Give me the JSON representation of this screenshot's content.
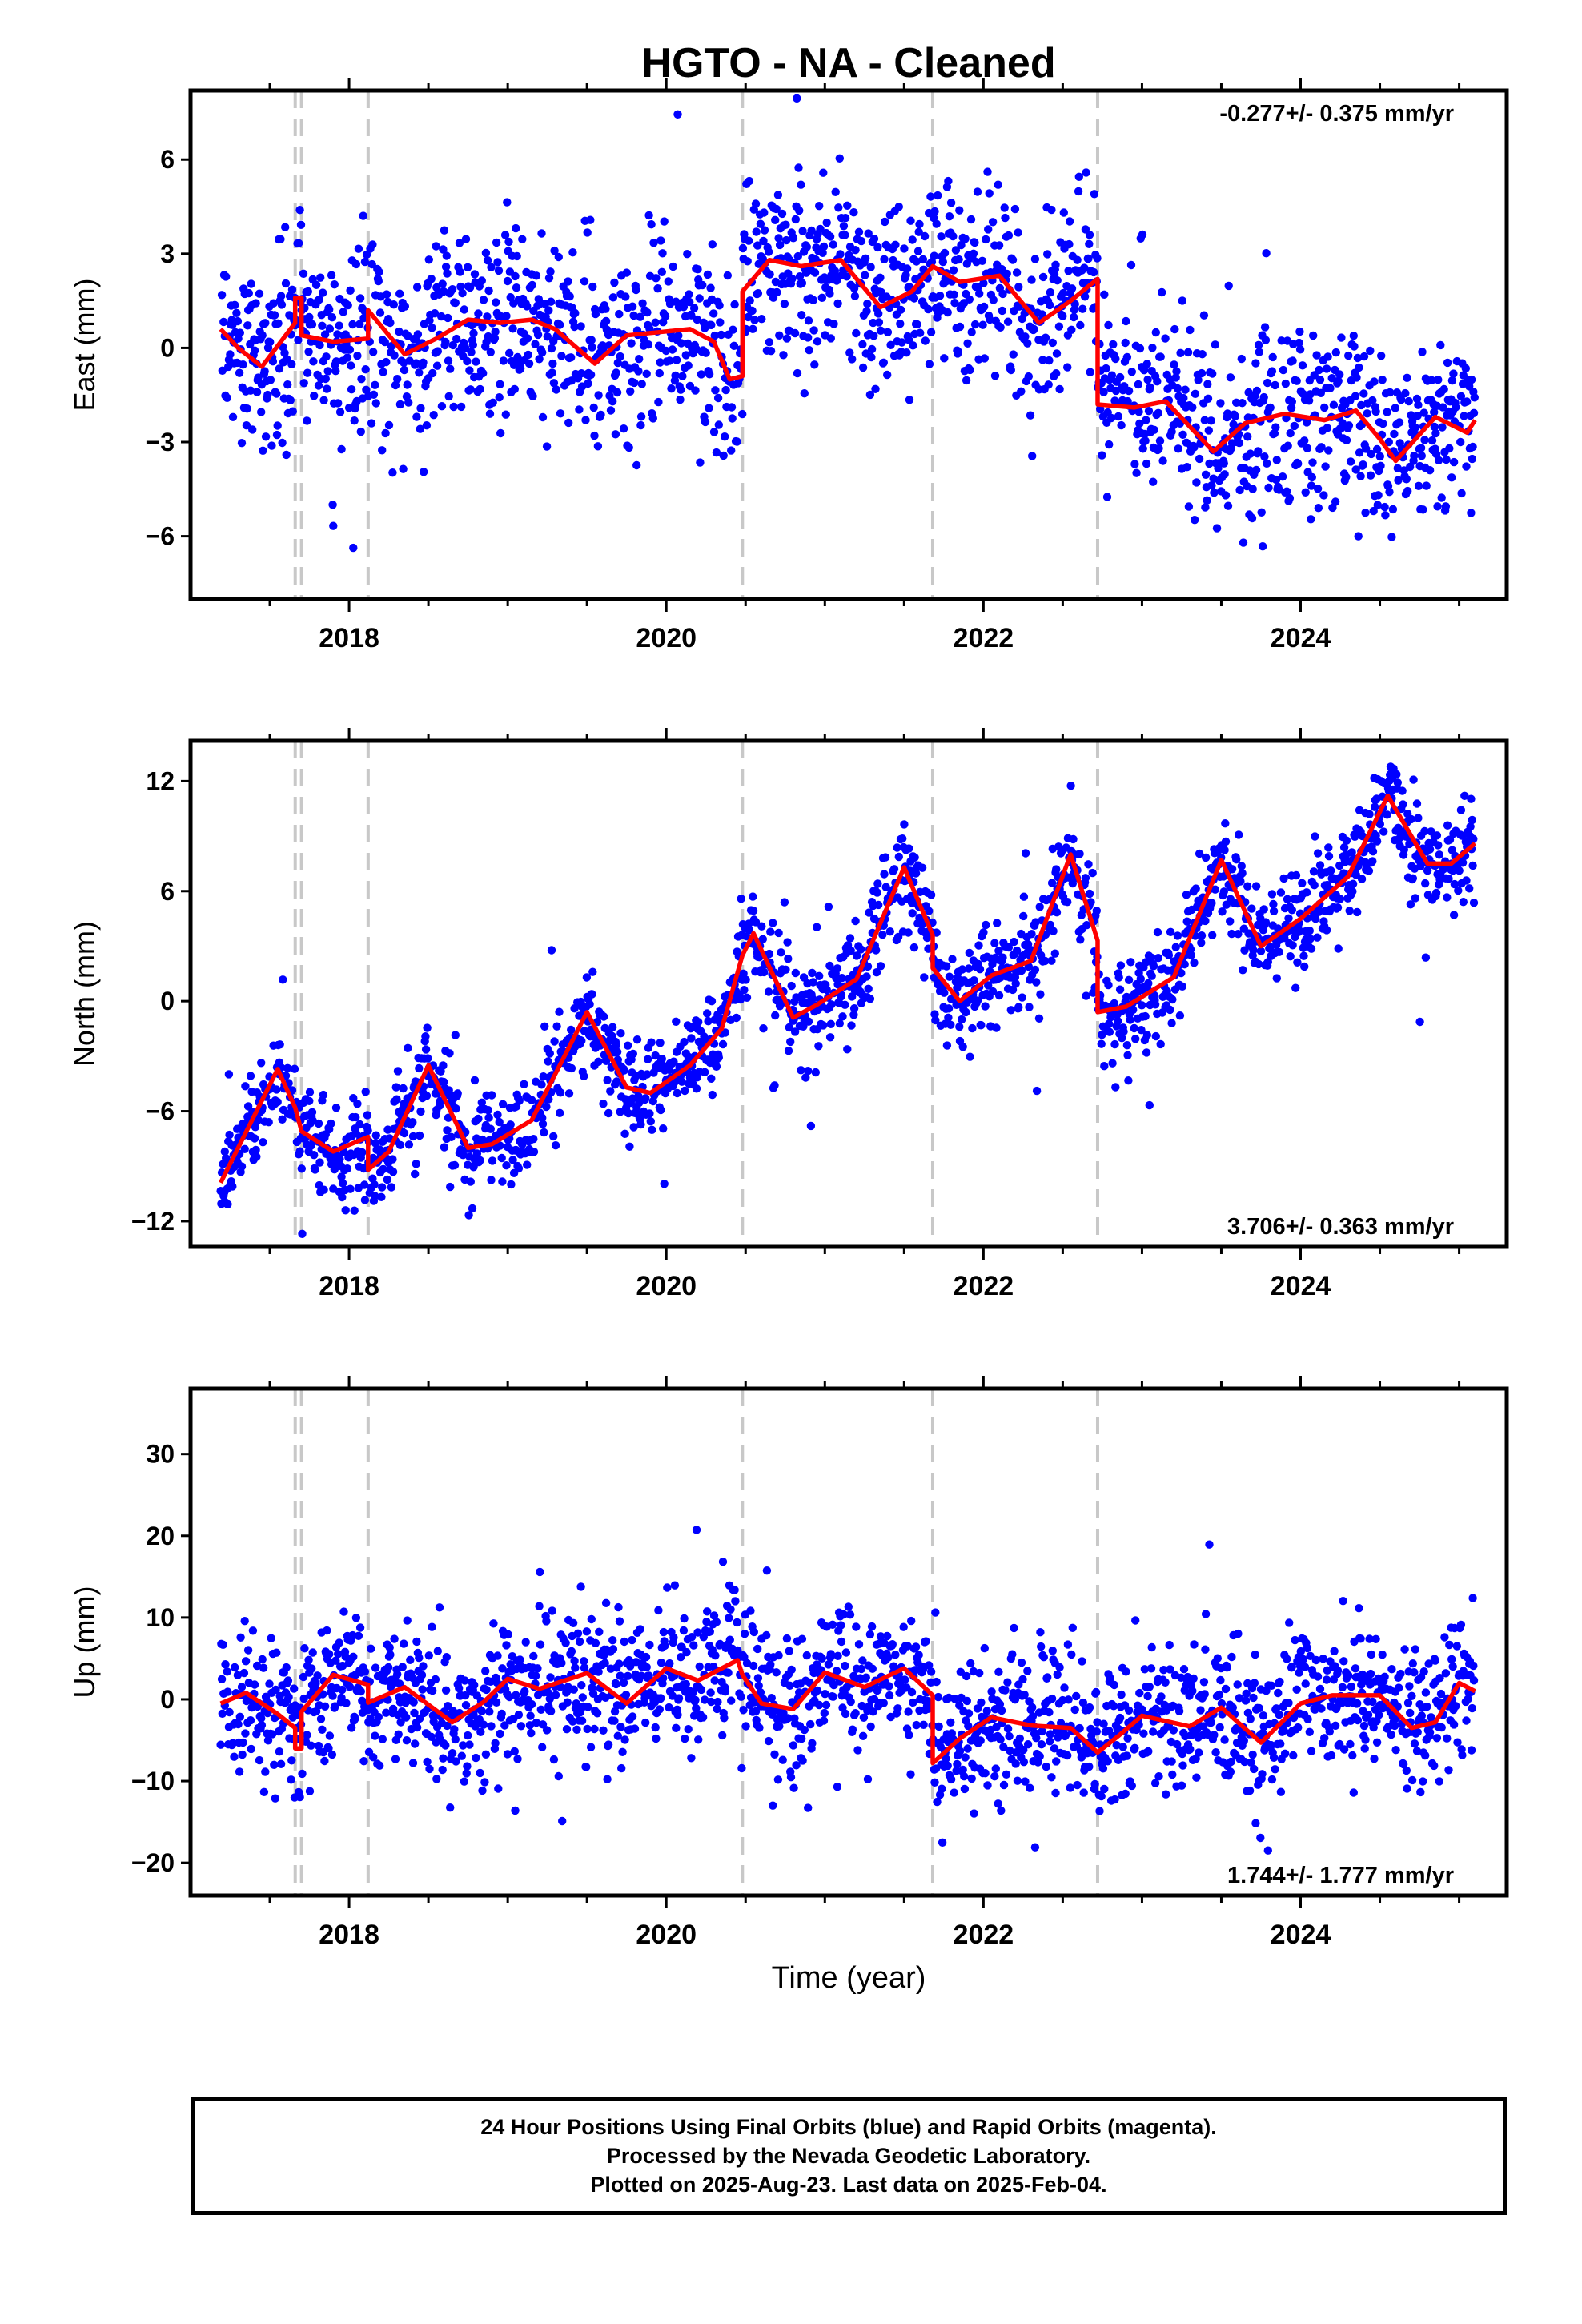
{
  "title": "HGTO  - NA - Cleaned",
  "colors": {
    "final_orbits": "#0000ff",
    "model": "#ff0000",
    "breaks": "#c8c8c8",
    "frame": "#000000"
  },
  "chart_data": [
    {
      "type": "scatter",
      "component": "east",
      "ylabel": "East (mm)",
      "xlabel": "",
      "rate_label": "-0.277+/- 0.375 mm/yr",
      "xlim": [
        2017.0,
        2025.3
      ],
      "ylim": [
        -8.0,
        8.2
      ],
      "yticks": [
        -6,
        -3,
        0,
        3,
        6
      ],
      "xticks": [
        2018,
        2020,
        2022,
        2024
      ],
      "x_minor_ticks": [
        2017.5,
        2018.5,
        2019,
        2019.5,
        2020.5,
        2021,
        2021.5,
        2022.5,
        2023,
        2023.5,
        2024.5,
        2025
      ],
      "breaks": [
        2017.66,
        2017.7,
        2018.12,
        2020.48,
        2021.68,
        2022.72
      ],
      "model": [
        [
          2017.19,
          0.6
        ],
        [
          2017.3,
          0.0
        ],
        [
          2017.45,
          -0.6
        ],
        [
          2017.6,
          0.4
        ],
        [
          2017.66,
          0.8
        ],
        [
          2017.66,
          1.6
        ],
        [
          2017.7,
          1.6
        ],
        [
          2017.7,
          0.4
        ],
        [
          2017.9,
          0.2
        ],
        [
          2018.12,
          0.3
        ],
        [
          2018.12,
          1.2
        ],
        [
          2018.35,
          -0.2
        ],
        [
          2018.55,
          0.3
        ],
        [
          2018.75,
          0.9
        ],
        [
          2018.95,
          0.8
        ],
        [
          2019.15,
          0.9
        ],
        [
          2019.3,
          0.6
        ],
        [
          2019.55,
          -0.5
        ],
        [
          2019.75,
          0.4
        ],
        [
          2019.95,
          0.5
        ],
        [
          2020.15,
          0.6
        ],
        [
          2020.3,
          0.2
        ],
        [
          2020.4,
          -1.0
        ],
        [
          2020.48,
          -0.9
        ],
        [
          2020.48,
          1.8
        ],
        [
          2020.65,
          2.8
        ],
        [
          2020.85,
          2.6
        ],
        [
          2021.1,
          2.8
        ],
        [
          2021.35,
          1.3
        ],
        [
          2021.55,
          1.8
        ],
        [
          2021.68,
          2.6
        ],
        [
          2021.85,
          2.1
        ],
        [
          2022.1,
          2.3
        ],
        [
          2022.35,
          0.8
        ],
        [
          2022.55,
          1.5
        ],
        [
          2022.72,
          2.2
        ],
        [
          2022.72,
          -1.8
        ],
        [
          2022.95,
          -1.9
        ],
        [
          2023.15,
          -1.7
        ],
        [
          2023.45,
          -3.3
        ],
        [
          2023.65,
          -2.4
        ],
        [
          2023.9,
          -2.1
        ],
        [
          2024.15,
          -2.3
        ],
        [
          2024.35,
          -2.0
        ],
        [
          2024.5,
          -2.9
        ],
        [
          2024.6,
          -3.6
        ],
        [
          2024.85,
          -2.2
        ],
        [
          2025.05,
          -2.7
        ],
        [
          2025.1,
          -2.3
        ]
      ]
    },
    {
      "type": "scatter",
      "component": "north",
      "ylabel": "North (mm)",
      "xlabel": "",
      "rate_label": "3.706+/- 0.363 mm/yr",
      "xlim": [
        2017.0,
        2025.3
      ],
      "ylim": [
        -13.4,
        14.2
      ],
      "yticks": [
        -12,
        -6,
        0,
        6,
        12
      ],
      "xticks": [
        2018,
        2020,
        2022,
        2024
      ],
      "x_minor_ticks": [
        2017.5,
        2018.5,
        2019,
        2019.5,
        2020.5,
        2021,
        2021.5,
        2022.5,
        2023,
        2023.5,
        2024.5,
        2025
      ],
      "breaks": [
        2017.66,
        2017.7,
        2018.12,
        2020.48,
        2021.68,
        2022.72
      ],
      "model": [
        [
          2017.19,
          -9.9
        ],
        [
          2017.3,
          -8.0
        ],
        [
          2017.55,
          -3.7
        ],
        [
          2017.66,
          -5.8
        ],
        [
          2017.7,
          -7.1
        ],
        [
          2017.9,
          -8.2
        ],
        [
          2018.12,
          -7.4
        ],
        [
          2018.12,
          -9.2
        ],
        [
          2018.25,
          -8.2
        ],
        [
          2018.5,
          -3.5
        ],
        [
          2018.75,
          -8.0
        ],
        [
          2018.9,
          -7.8
        ],
        [
          2019.15,
          -6.5
        ],
        [
          2019.5,
          -0.6
        ],
        [
          2019.75,
          -4.7
        ],
        [
          2019.9,
          -5.0
        ],
        [
          2020.15,
          -3.5
        ],
        [
          2020.35,
          -1.5
        ],
        [
          2020.48,
          2.5
        ],
        [
          2020.55,
          3.7
        ],
        [
          2020.8,
          -0.9
        ],
        [
          2020.95,
          -0.2
        ],
        [
          2021.2,
          1.2
        ],
        [
          2021.5,
          7.3
        ],
        [
          2021.68,
          3.6
        ],
        [
          2021.68,
          1.8
        ],
        [
          2021.85,
          0.0
        ],
        [
          2022.05,
          1.4
        ],
        [
          2022.3,
          2.2
        ],
        [
          2022.55,
          8.0
        ],
        [
          2022.72,
          3.3
        ],
        [
          2022.72,
          -0.6
        ],
        [
          2022.9,
          -0.3
        ],
        [
          2023.2,
          1.3
        ],
        [
          2023.5,
          7.7
        ],
        [
          2023.75,
          3.0
        ],
        [
          2024.0,
          4.5
        ],
        [
          2024.3,
          6.8
        ],
        [
          2024.55,
          11.2
        ],
        [
          2024.8,
          7.5
        ],
        [
          2024.95,
          7.5
        ],
        [
          2025.1,
          8.6
        ]
      ]
    },
    {
      "type": "scatter",
      "component": "up",
      "ylabel": "Up (mm)",
      "xlabel": "Time (year)",
      "rate_label": "1.744+/- 1.777 mm/yr",
      "xlim": [
        2017.0,
        2025.3
      ],
      "ylim": [
        -24.0,
        38.0
      ],
      "yticks": [
        -20,
        -10,
        0,
        10,
        20,
        30
      ],
      "xticks": [
        2018,
        2020,
        2022,
        2024
      ],
      "x_minor_ticks": [
        2017.5,
        2018.5,
        2019,
        2019.5,
        2020.5,
        2021,
        2021.5,
        2022.5,
        2023,
        2023.5,
        2024.5,
        2025
      ],
      "breaks": [
        2017.66,
        2017.7,
        2018.12,
        2020.48,
        2021.68,
        2022.72
      ],
      "model": [
        [
          2017.19,
          -0.5
        ],
        [
          2017.35,
          0.8
        ],
        [
          2017.55,
          -1.8
        ],
        [
          2017.66,
          -3.5
        ],
        [
          2017.66,
          -6.0
        ],
        [
          2017.7,
          -6.0
        ],
        [
          2017.7,
          -1.5
        ],
        [
          2017.9,
          3.0
        ],
        [
          2018.12,
          1.8
        ],
        [
          2018.12,
          -0.4
        ],
        [
          2018.35,
          1.5
        ],
        [
          2018.65,
          -2.8
        ],
        [
          2018.85,
          -0.3
        ],
        [
          2019.0,
          2.5
        ],
        [
          2019.2,
          1.3
        ],
        [
          2019.5,
          3.2
        ],
        [
          2019.75,
          -0.5
        ],
        [
          2020.0,
          3.8
        ],
        [
          2020.2,
          2.3
        ],
        [
          2020.45,
          4.8
        ],
        [
          2020.48,
          3.0
        ],
        [
          2020.6,
          -0.5
        ],
        [
          2020.8,
          -1.2
        ],
        [
          2021.0,
          3.3
        ],
        [
          2021.25,
          1.5
        ],
        [
          2021.5,
          3.8
        ],
        [
          2021.68,
          0.5
        ],
        [
          2021.68,
          -7.8
        ],
        [
          2021.85,
          -4.8
        ],
        [
          2022.05,
          -2.2
        ],
        [
          2022.3,
          -3.2
        ],
        [
          2022.55,
          -3.5
        ],
        [
          2022.72,
          -6.5
        ],
        [
          2022.85,
          -4.5
        ],
        [
          2023.0,
          -2.0
        ],
        [
          2023.3,
          -3.3
        ],
        [
          2023.5,
          -1.0
        ],
        [
          2023.75,
          -5.3
        ],
        [
          2024.0,
          -0.5
        ],
        [
          2024.2,
          0.5
        ],
        [
          2024.5,
          0.5
        ],
        [
          2024.7,
          -3.5
        ],
        [
          2024.85,
          -2.8
        ],
        [
          2025.0,
          2.0
        ],
        [
          2025.1,
          1.0
        ]
      ]
    }
  ],
  "footer": {
    "line1": "24 Hour Positions Using Final Orbits (blue) and Rapid Orbits (magenta).",
    "line2": "Processed by the Nevada Geodetic Laboratory.",
    "line3": "Plotted on 2025-Aug-23. Last data on 2025-Feb-04."
  }
}
